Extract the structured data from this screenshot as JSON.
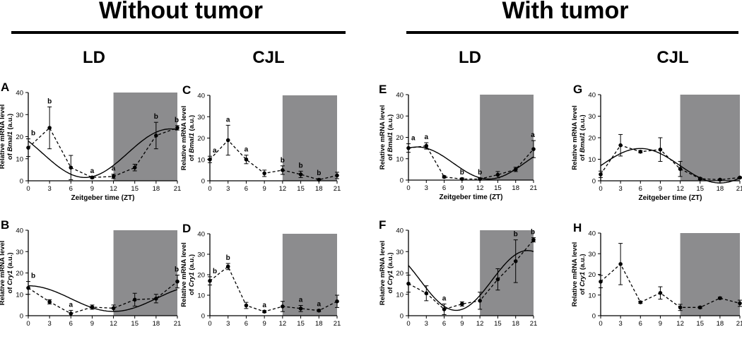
{
  "headers": {
    "without": "Without tumor",
    "with": "With tumor",
    "ld_a": "LD",
    "cjl_a": "CJL",
    "ld_b": "LD",
    "cjl_b": "CJL"
  },
  "colors": {
    "dark_phase": "#8c8c8e",
    "line": "#000000"
  },
  "chart_data": [
    {
      "id": "A",
      "letter": "A",
      "type": "line",
      "gene": "Bmal1",
      "xlabel": "Zeitgeber time (ZT)",
      "ylabel_prefix": "Relative mRNA level",
      "ylabel_of": "of ",
      "ylabel_suffix": " (a.u.)",
      "x": [
        0,
        3,
        6,
        9,
        12,
        15,
        18,
        21
      ],
      "y": [
        15,
        24,
        6,
        1.5,
        2,
        6,
        20.5,
        24
      ],
      "err": [
        4,
        9.5,
        5.5,
        0.5,
        1,
        1.5,
        6,
        1
      ],
      "letters": [
        "b",
        "b",
        "",
        "a",
        "a",
        "",
        "b",
        "b"
      ],
      "ylim": [
        0,
        40
      ],
      "yticks": [
        0,
        10,
        20,
        30,
        40
      ],
      "dark": [
        12,
        21
      ],
      "fit": {
        "mesor": 12.5,
        "amp": 11,
        "peak": 20
      }
    },
    {
      "id": "B",
      "letter": "B",
      "type": "line",
      "gene": "Cry1",
      "xlabel": "",
      "ylabel_prefix": "Relative mRNA level",
      "ylabel_of": "of ",
      "ylabel_suffix": " (a.u.)",
      "x": [
        0,
        3,
        6,
        9,
        12,
        15,
        18,
        21
      ],
      "y": [
        13,
        6.5,
        1,
        4,
        3.5,
        7.5,
        8,
        16
      ],
      "err": [
        3,
        1,
        1.5,
        1,
        1.5,
        3,
        2,
        3
      ],
      "letters": [
        "b",
        "",
        "a",
        "",
        "",
        "",
        "",
        "b"
      ],
      "ylim": [
        0,
        40
      ],
      "yticks": [
        0,
        10,
        20,
        30,
        40
      ],
      "dark": [
        12,
        21
      ],
      "fit": {
        "mesor": 8,
        "amp": 6,
        "peak": 0
      }
    },
    {
      "id": "C",
      "letter": "C",
      "type": "line",
      "gene": "Bmal1",
      "xlabel": "",
      "ylabel_prefix": "Relative mRNA level",
      "ylabel_of": "of ",
      "ylabel_suffix": " (a.u.)",
      "x": [
        0,
        3,
        6,
        9,
        12,
        15,
        18,
        21
      ],
      "y": [
        10,
        19,
        10,
        3.5,
        5,
        3,
        0.5,
        2.5
      ],
      "err": [
        1.5,
        7,
        2,
        1.5,
        2,
        1.5,
        0.5,
        1.5
      ],
      "letters": [
        "a",
        "a",
        "a",
        "",
        "b",
        "b",
        "b",
        ""
      ],
      "ylim": [
        0,
        40
      ],
      "yticks": [
        0,
        10,
        20,
        30,
        40
      ],
      "dark": [
        12,
        21
      ],
      "fit": null
    },
    {
      "id": "D",
      "letter": "D",
      "type": "line",
      "gene": "Cry1",
      "xlabel": "",
      "ylabel_prefix": "Relative mRNA level",
      "ylabel_of": "of ",
      "ylabel_suffix": " (a.u.)",
      "x": [
        0,
        3,
        6,
        9,
        12,
        15,
        18,
        21
      ],
      "y": [
        17,
        24,
        5,
        2,
        4.5,
        3.5,
        2.5,
        7
      ],
      "err": [
        2,
        1.5,
        1.5,
        0.5,
        2.5,
        1.5,
        0.5,
        3
      ],
      "letters": [
        "b",
        "b",
        "",
        "a",
        "",
        "a",
        "a",
        ""
      ],
      "ylim": [
        0,
        40
      ],
      "yticks": [
        0,
        10,
        20,
        30,
        40
      ],
      "dark": [
        12,
        21
      ],
      "fit": null
    },
    {
      "id": "E",
      "letter": "E",
      "type": "line",
      "gene": "Bmal1",
      "xlabel": "Zeitgeber time (ZT)",
      "ylabel_prefix": "Relative mRNA level",
      "ylabel_of": "of ",
      "ylabel_suffix": " (a.u.)",
      "x": [
        0,
        3,
        6,
        9,
        12,
        15,
        18,
        21
      ],
      "y": [
        15,
        16,
        1.5,
        0.5,
        0.5,
        2.5,
        5,
        14.5
      ],
      "err": [
        2,
        1.5,
        0.5,
        0.5,
        0.5,
        1.5,
        1,
        4
      ],
      "letters": [
        "a",
        "a",
        "",
        "b",
        "b",
        "",
        "",
        "a"
      ],
      "ylim": [
        0,
        40
      ],
      "yticks": [
        0,
        10,
        20,
        30,
        40
      ],
      "dark": [
        12,
        21
      ],
      "fit": {
        "mesor": 8,
        "amp": 7.5,
        "peak": 1.5
      }
    },
    {
      "id": "F",
      "letter": "F",
      "type": "line",
      "gene": "Cry1",
      "xlabel": "",
      "ylabel_prefix": "Relative mRNA level",
      "ylabel_of": "of ",
      "ylabel_suffix": " (a.u.)",
      "x": [
        0,
        3,
        6,
        9,
        12,
        15,
        18,
        21
      ],
      "y": [
        15,
        10.5,
        3,
        5.5,
        7,
        17,
        25.5,
        35.5
      ],
      "err": [
        4,
        3.5,
        2.5,
        1,
        4,
        5,
        10,
        1
      ],
      "letters": [
        "",
        "",
        "a",
        "",
        "",
        "",
        "b",
        "b"
      ],
      "ylim": [
        0,
        40
      ],
      "yticks": [
        0,
        10,
        20,
        30,
        40
      ],
      "dark": [
        12,
        21
      ],
      "fit": {
        "mesor": 16.5,
        "amp": 14,
        "peak": 20
      }
    },
    {
      "id": "G",
      "letter": "G",
      "type": "line",
      "gene": "Bmal1",
      "xlabel": "Zeitgeber time (ZT)",
      "ylabel_prefix": "Relative mRNA level",
      "ylabel_of": "of ",
      "ylabel_suffix": " (a.u.)",
      "x": [
        0,
        3,
        6,
        9,
        12,
        15,
        18,
        21
      ],
      "y": [
        3,
        16.5,
        13.5,
        14.5,
        5.5,
        1,
        0.5,
        1.5
      ],
      "err": [
        1.5,
        5,
        0.5,
        5.5,
        3.5,
        0.5,
        0.3,
        0.3
      ],
      "letters": [
        "",
        "",
        "",
        "",
        "",
        "",
        "",
        ""
      ],
      "ylim": [
        0,
        40
      ],
      "yticks": [
        0,
        10,
        20,
        30,
        40
      ],
      "dark": [
        12,
        21
      ],
      "fit": {
        "mesor": 7,
        "amp": 8,
        "peak": 6
      }
    },
    {
      "id": "H",
      "letter": "H",
      "type": "line",
      "gene": "Cry1",
      "xlabel": "",
      "ylabel_prefix": "Relative mRNA level",
      "ylabel_of": "of ",
      "ylabel_suffix": " (a.u.)",
      "x": [
        0,
        3,
        6,
        9,
        12,
        15,
        18,
        21
      ],
      "y": [
        16.5,
        25,
        6.5,
        11,
        4,
        4,
        8.5,
        6
      ],
      "err": [
        3,
        10,
        0.5,
        3,
        1.5,
        0.5,
        0.5,
        1.5
      ],
      "letters": [
        "",
        "",
        "",
        "",
        "",
        "",
        "",
        ""
      ],
      "ylim": [
        0,
        40
      ],
      "yticks": [
        0,
        10,
        20,
        30,
        40
      ],
      "dark": [
        12,
        21
      ],
      "fit": null
    }
  ]
}
